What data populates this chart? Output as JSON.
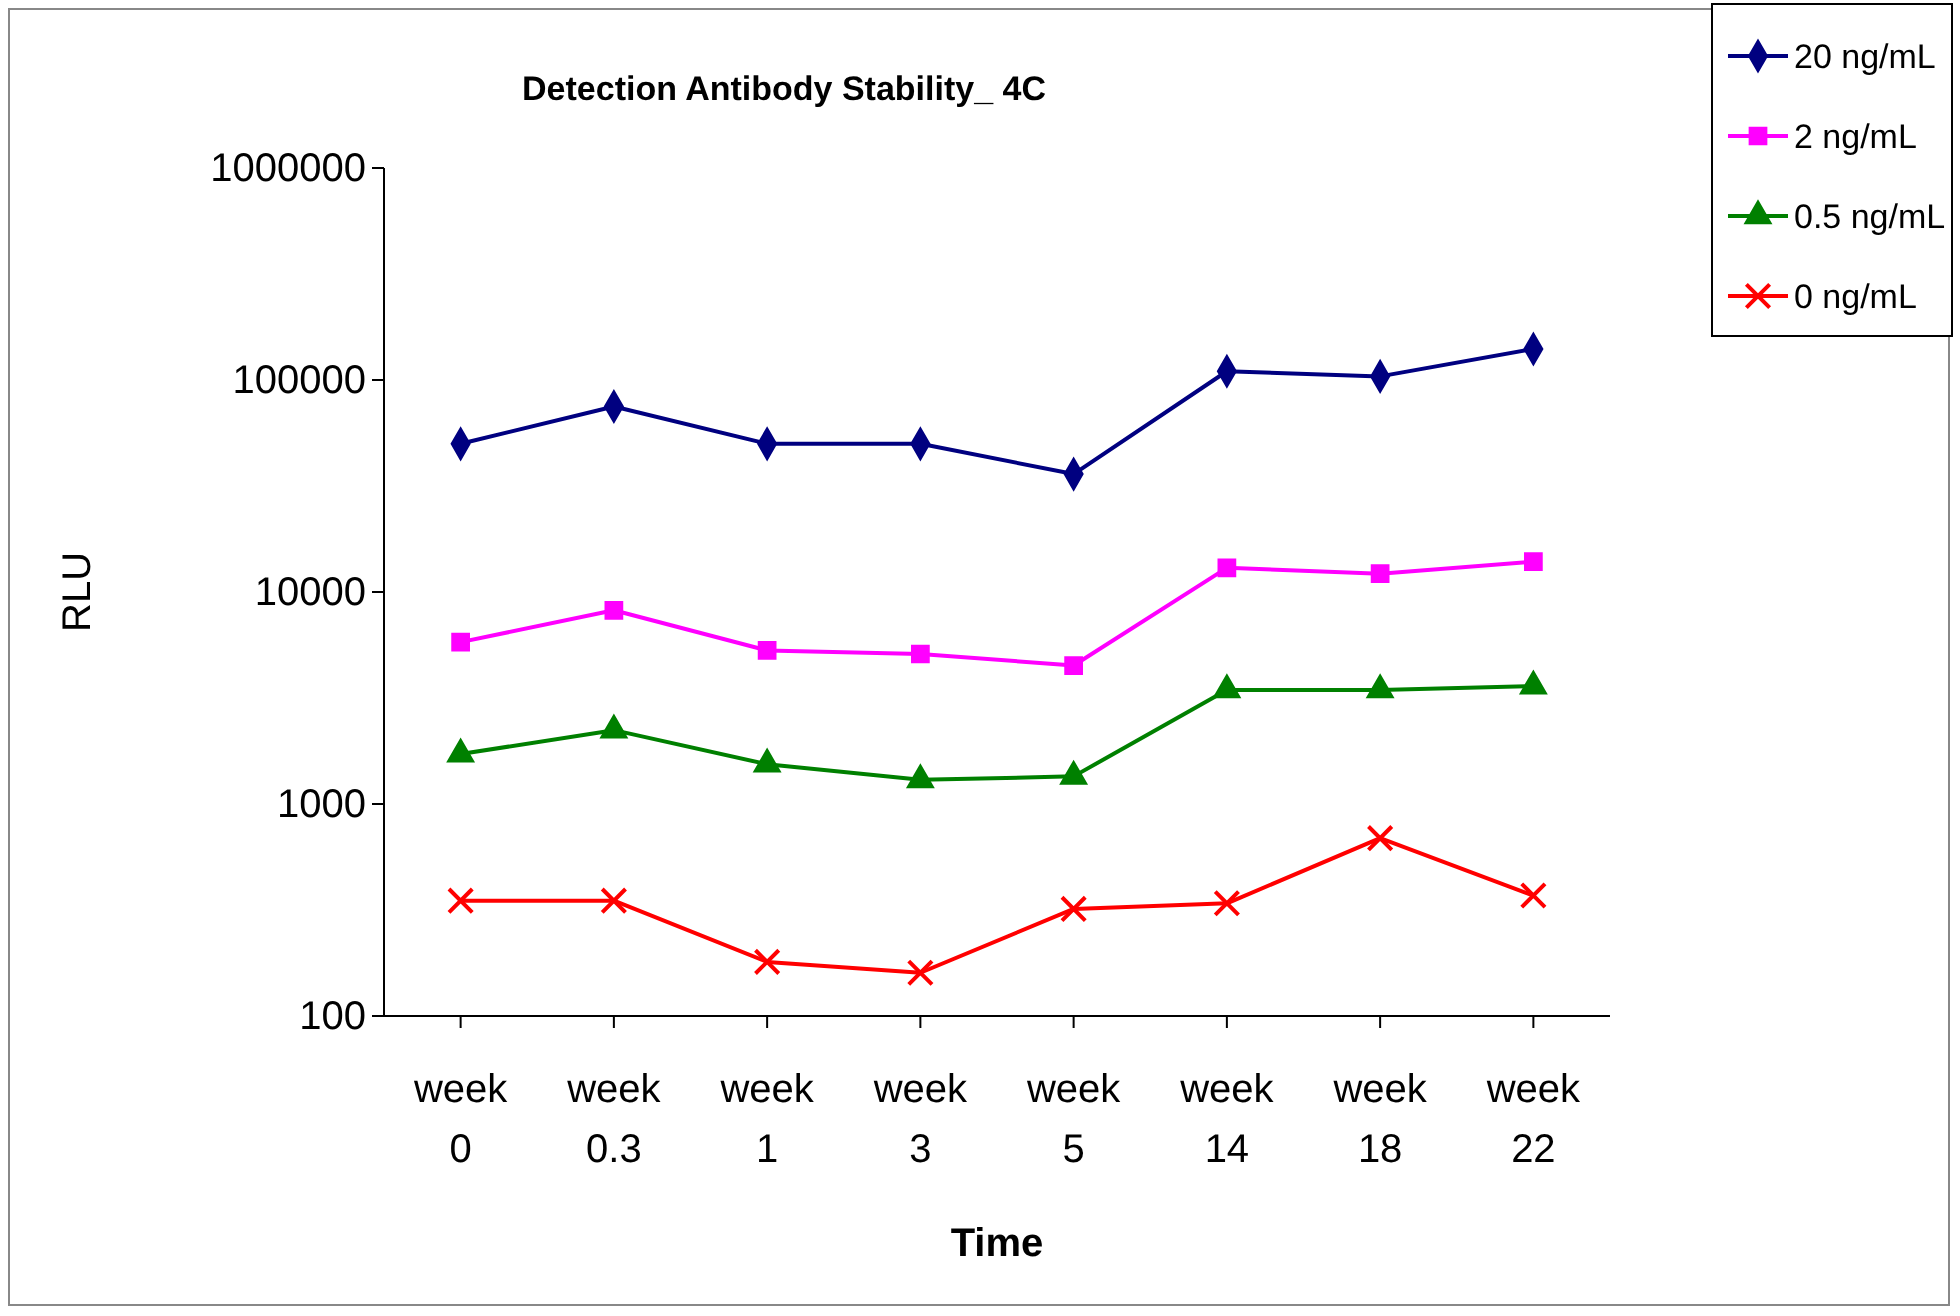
{
  "chart_data": {
    "type": "line",
    "title": "Detection Antibody Stability_ 4C",
    "xlabel": "Time",
    "ylabel": "RLU",
    "categories": [
      "week 0",
      "week 0.3",
      "week 1",
      "week 3",
      "week 5",
      "week 14",
      "week 18",
      "week 22"
    ],
    "log": true,
    "ylim": [
      100,
      1000000
    ],
    "yticks": [
      100,
      1000,
      10000,
      100000,
      1000000
    ],
    "grid": false,
    "legend": "top right",
    "series": [
      {
        "name": "20 ng/mL",
        "color": "#000080",
        "marker": "diamond",
        "values": [
          50000,
          75000,
          50000,
          50000,
          36000,
          110000,
          104000,
          140000
        ]
      },
      {
        "name": "2 ng/mL",
        "color": "#ff00ff",
        "marker": "square",
        "values": [
          5800,
          8200,
          5300,
          5100,
          4500,
          13000,
          12200,
          13900
        ]
      },
      {
        "name": "0.5 ng/mL",
        "color": "#008000",
        "marker": "triangle",
        "values": [
          1720,
          2230,
          1540,
          1300,
          1350,
          3450,
          3450,
          3600
        ]
      },
      {
        "name": "0 ng/mL",
        "color": "#ff0000",
        "marker": "cross",
        "values": [
          350,
          350,
          180,
          160,
          320,
          340,
          690,
          370
        ]
      }
    ]
  }
}
